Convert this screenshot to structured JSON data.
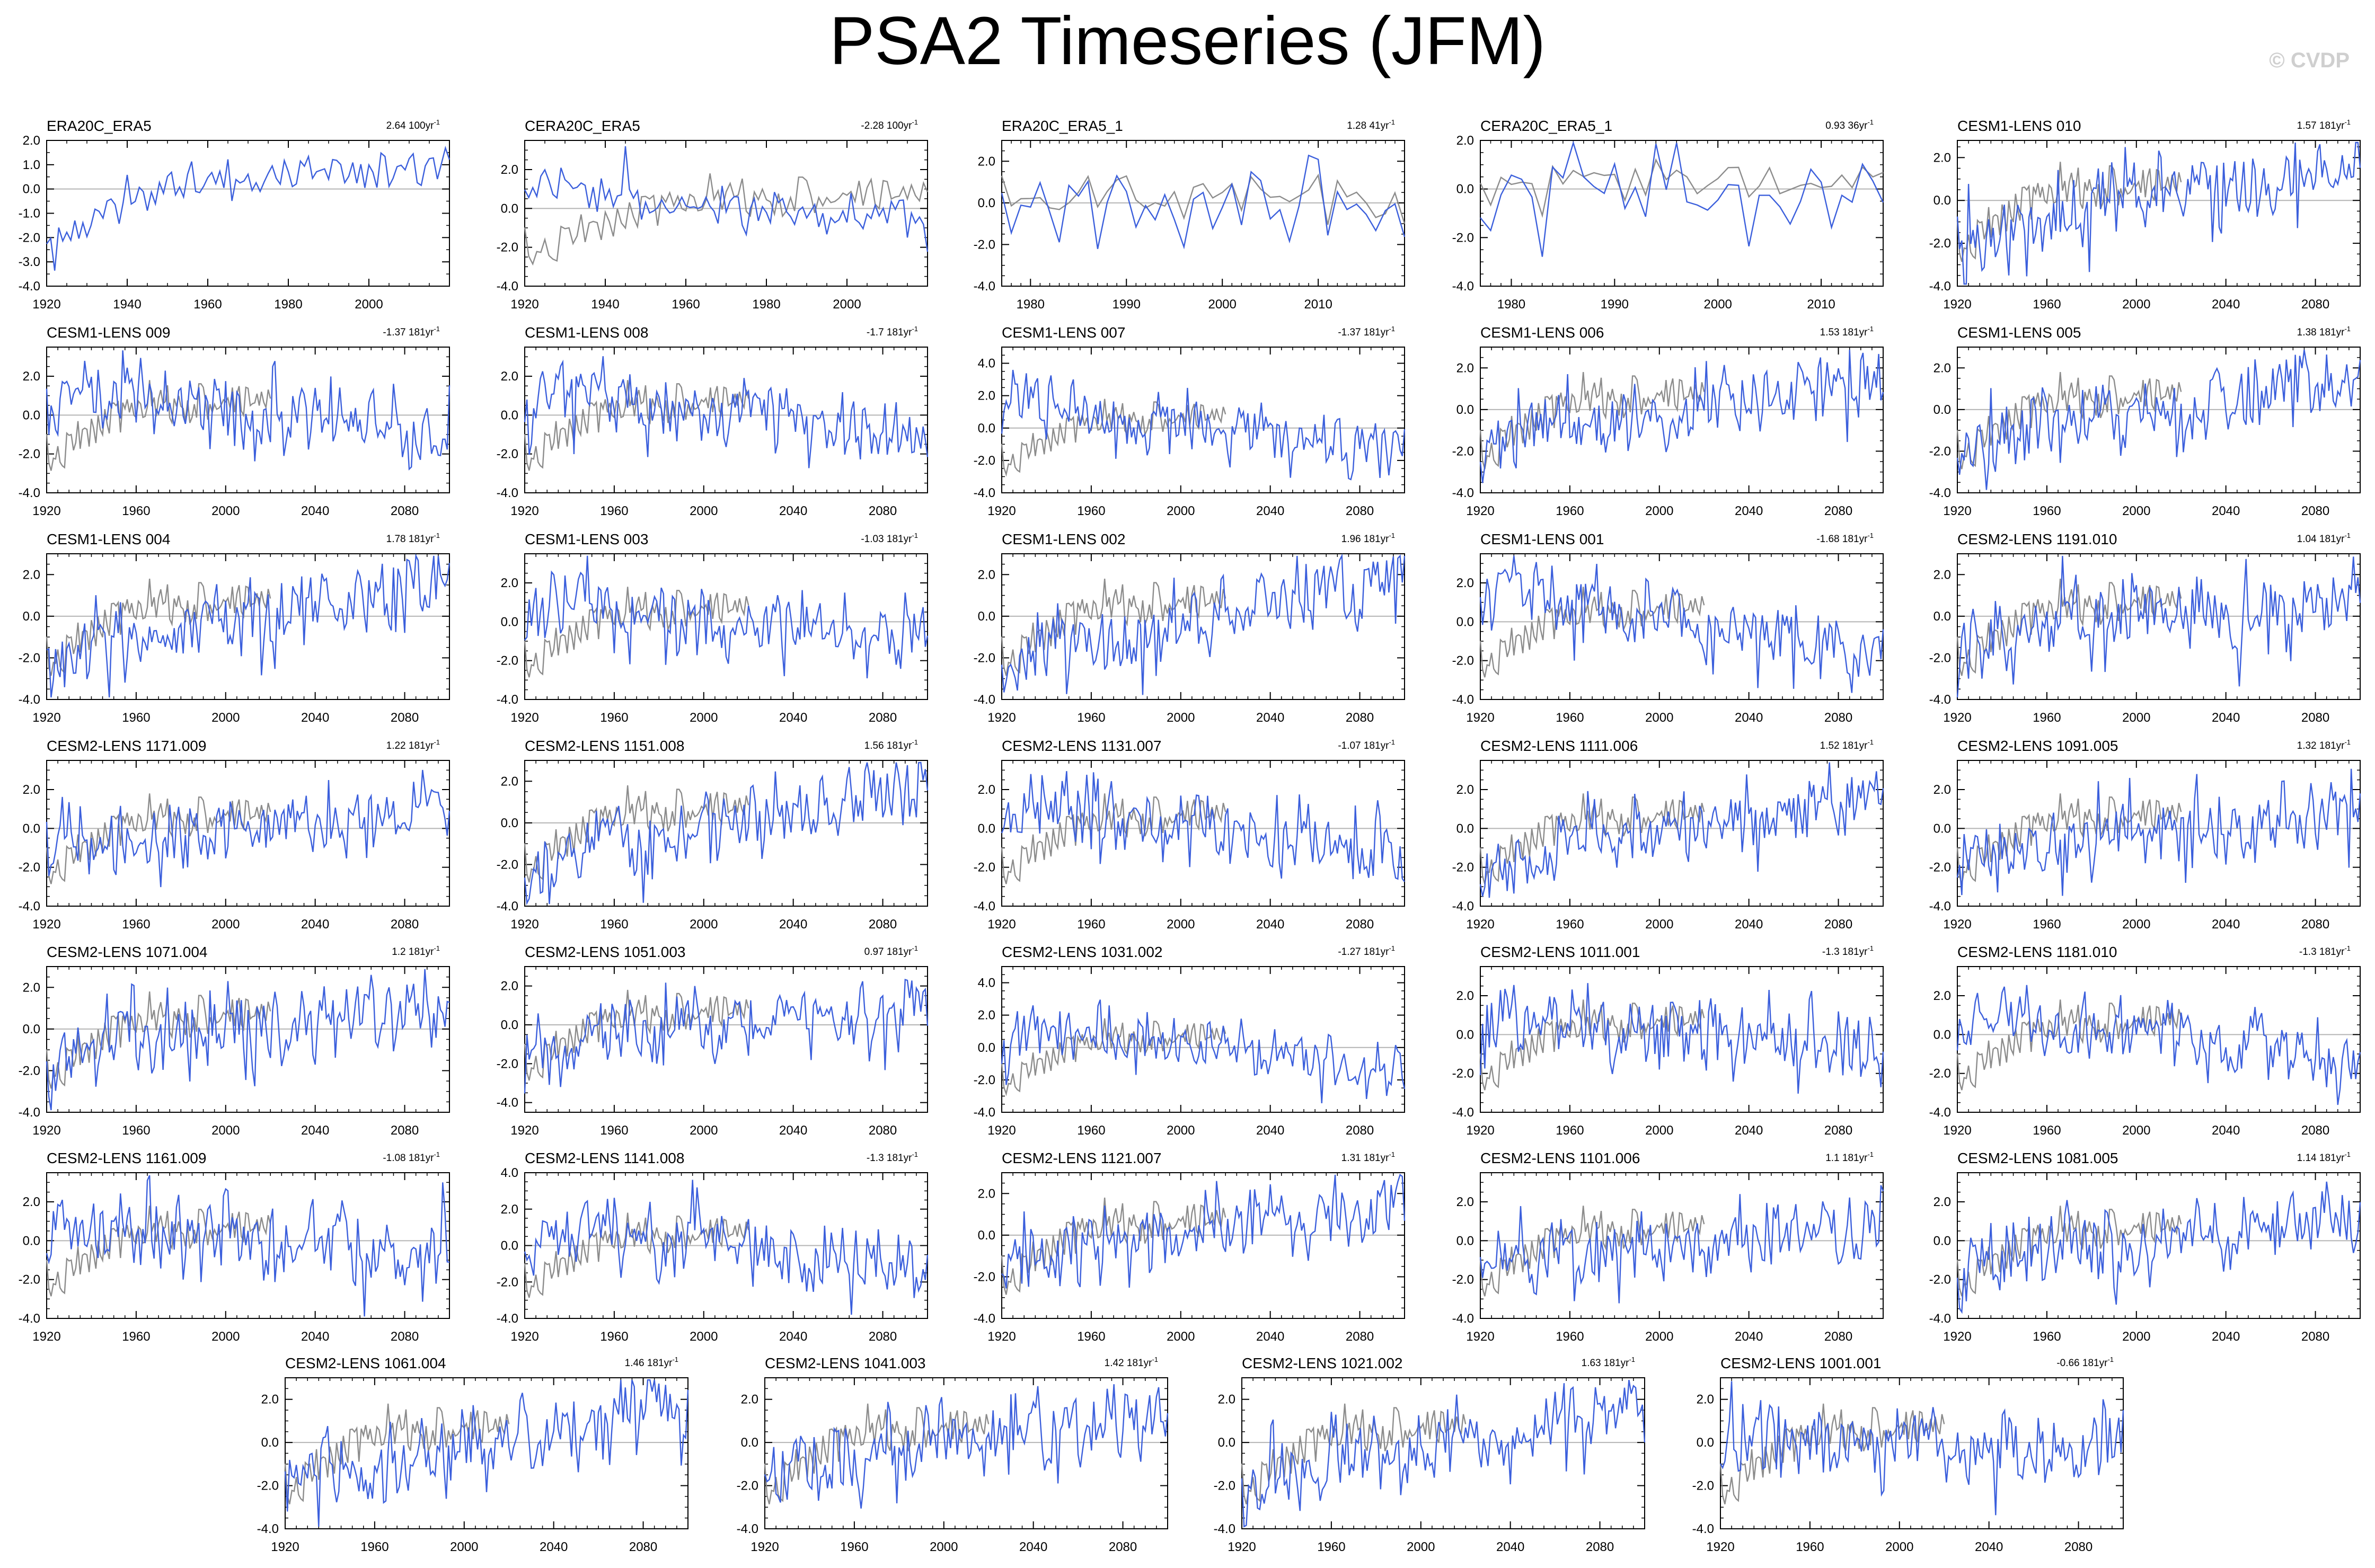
{
  "title": "PSA2 Timeseries (JFM)",
  "watermark": "© CVDP",
  "colors": {
    "model": "#3b5fdc",
    "obs": "#8c8c8c",
    "zero": "#b4b4b4",
    "axis": "#000000"
  },
  "chart_data": [
    {
      "type": "line",
      "title": "ERA20C_ERA5",
      "trend": "2.64 100yr",
      "kind": "obs20c",
      "series": [
        {
          "values": []
        }
      ],
      "xlim": [
        1920,
        2020
      ],
      "xticks": [
        1920,
        1940,
        1960,
        1980,
        2000
      ],
      "ylim": [
        -4,
        2
      ],
      "yticks": [
        -4,
        -3,
        -2,
        -1,
        0,
        1,
        2
      ],
      "ytick_labels": [
        "-4.0",
        "-3.0",
        "-2.0",
        "-1.0",
        "0.0",
        "1.0",
        "2.0"
      ]
    },
    {
      "type": "line",
      "title": "CERA20C_ERA5",
      "trend": "-2.28 100yr",
      "kind": "obs20c_cmp",
      "series": [
        {
          "values": []
        }
      ],
      "xlim": [
        1920,
        2020
      ],
      "xticks": [
        1920,
        1940,
        1960,
        1980,
        2000
      ],
      "ylim": [
        -4,
        3.5
      ],
      "yticks": [
        -4,
        -2,
        0,
        2
      ],
      "ytick_labels": [
        "-4.0",
        "-2.0",
        "0.0",
        "2.0"
      ]
    },
    {
      "type": "line",
      "title": "ERA20C_ERA5_1",
      "trend": "1.28 41yr",
      "kind": "obsERA5",
      "series": [
        {
          "values": []
        }
      ],
      "xlim": [
        1977,
        2019
      ],
      "xticks": [
        1980,
        1990,
        2000,
        2010
      ],
      "ylim": [
        -4,
        3
      ],
      "yticks": [
        -4,
        -2,
        0,
        2
      ],
      "ytick_labels": [
        "-4.0",
        "-2.0",
        "0.0",
        "2.0"
      ]
    },
    {
      "type": "line",
      "title": "CERA20C_ERA5_1",
      "trend": "0.93 36yr",
      "kind": "obsERA5",
      "series": [
        {
          "values": []
        }
      ],
      "xlim": [
        1977,
        2016
      ],
      "xticks": [
        1980,
        1990,
        2000,
        2010
      ],
      "ylim": [
        -4,
        2
      ],
      "yticks": [
        -4,
        -2,
        0,
        2
      ],
      "ytick_labels": [
        "-4.0",
        "-2.0",
        "0.0",
        "2.0"
      ]
    },
    {
      "type": "line",
      "title": "CESM1-LENS 010",
      "trend": "1.57 181yr",
      "kind": "lens",
      "series": [
        {
          "values": []
        }
      ],
      "xlim": [
        1920,
        2100
      ],
      "xticks": [
        1920,
        1960,
        2000,
        2040,
        2080
      ],
      "ylim": [
        -4,
        2.8
      ],
      "yticks": [
        -4,
        -2,
        0,
        2
      ],
      "ytick_labels": [
        "-4.0",
        "-2.0",
        "0.0",
        "2.0"
      ]
    },
    {
      "type": "line",
      "title": "CESM1-LENS 009",
      "trend": "-1.37 181yr",
      "kind": "lens",
      "series": [
        {
          "values": []
        }
      ],
      "xlim": [
        1920,
        2100
      ],
      "xticks": [
        1920,
        1960,
        2000,
        2040,
        2080
      ],
      "ylim": [
        -4,
        3.5
      ],
      "yticks": [
        -4,
        -2,
        0,
        2
      ],
      "ytick_labels": [
        "-4.0",
        "-2.0",
        "0.0",
        "2.0"
      ]
    },
    {
      "type": "line",
      "title": "CESM1-LENS 008",
      "trend": "-1.7 181yr",
      "kind": "lens",
      "series": [
        {
          "values": []
        }
      ],
      "xlim": [
        1920,
        2100
      ],
      "xticks": [
        1920,
        1960,
        2000,
        2040,
        2080
      ],
      "ylim": [
        -4,
        3.5
      ],
      "yticks": [
        -4,
        -2,
        0,
        2
      ],
      "ytick_labels": [
        "-4.0",
        "-2.0",
        "0.0",
        "2.0"
      ]
    },
    {
      "type": "line",
      "title": "CESM1-LENS 007",
      "trend": "-1.37 181yr",
      "kind": "lens",
      "series": [
        {
          "values": []
        }
      ],
      "xlim": [
        1920,
        2100
      ],
      "xticks": [
        1920,
        1960,
        2000,
        2040,
        2080
      ],
      "ylim": [
        -4,
        5
      ],
      "yticks": [
        -4,
        -2,
        0,
        2,
        4
      ],
      "ytick_labels": [
        "-4.0",
        "-2.0",
        "0.0",
        "2.0",
        "4.0"
      ]
    },
    {
      "type": "line",
      "title": "CESM1-LENS 006",
      "trend": "1.53 181yr",
      "kind": "lens",
      "series": [
        {
          "values": []
        }
      ],
      "xlim": [
        1920,
        2100
      ],
      "xticks": [
        1920,
        1960,
        2000,
        2040,
        2080
      ],
      "ylim": [
        -4,
        3
      ],
      "yticks": [
        -4,
        -2,
        0,
        2
      ],
      "ytick_labels": [
        "-4.0",
        "-2.0",
        "0.0",
        "2.0"
      ]
    },
    {
      "type": "line",
      "title": "CESM1-LENS 005",
      "trend": "1.38 181yr",
      "kind": "lens",
      "series": [
        {
          "values": []
        }
      ],
      "xlim": [
        1920,
        2100
      ],
      "xticks": [
        1920,
        1960,
        2000,
        2040,
        2080
      ],
      "ylim": [
        -4,
        3
      ],
      "yticks": [
        -4,
        -2,
        0,
        2
      ],
      "ytick_labels": [
        "-4.0",
        "-2.0",
        "0.0",
        "2.0"
      ]
    },
    {
      "type": "line",
      "title": "CESM1-LENS 004",
      "trend": "1.78 181yr",
      "kind": "lens",
      "series": [
        {
          "values": []
        }
      ],
      "xlim": [
        1920,
        2100
      ],
      "xticks": [
        1920,
        1960,
        2000,
        2040,
        2080
      ],
      "ylim": [
        -4,
        3
      ],
      "yticks": [
        -4,
        -2,
        0,
        2
      ],
      "ytick_labels": [
        "-4.0",
        "-2.0",
        "0.0",
        "2.0"
      ]
    },
    {
      "type": "line",
      "title": "CESM1-LENS 003",
      "trend": "-1.03 181yr",
      "kind": "lens",
      "series": [
        {
          "values": []
        }
      ],
      "xlim": [
        1920,
        2100
      ],
      "xticks": [
        1920,
        1960,
        2000,
        2040,
        2080
      ],
      "ylim": [
        -4,
        3.5
      ],
      "yticks": [
        -4,
        -2,
        0,
        2
      ],
      "ytick_labels": [
        "-4.0",
        "-2.0",
        "0.0",
        "2.0"
      ]
    },
    {
      "type": "line",
      "title": "CESM1-LENS 002",
      "trend": "1.96 181yr",
      "kind": "lens",
      "series": [
        {
          "values": []
        }
      ],
      "xlim": [
        1920,
        2100
      ],
      "xticks": [
        1920,
        1960,
        2000,
        2040,
        2080
      ],
      "ylim": [
        -4,
        3
      ],
      "yticks": [
        -4,
        -2,
        0,
        2
      ],
      "ytick_labels": [
        "-4.0",
        "-2.0",
        "0.0",
        "2.0"
      ]
    },
    {
      "type": "line",
      "title": "CESM1-LENS 001",
      "trend": "-1.68 181yr",
      "kind": "lens",
      "series": [
        {
          "values": []
        }
      ],
      "xlim": [
        1920,
        2100
      ],
      "xticks": [
        1920,
        1960,
        2000,
        2040,
        2080
      ],
      "ylim": [
        -4,
        3.5
      ],
      "yticks": [
        -4,
        -2,
        0,
        2
      ],
      "ytick_labels": [
        "-4.0",
        "-2.0",
        "0.0",
        "2.0"
      ]
    },
    {
      "type": "line",
      "title": "CESM2-LENS 1191.010",
      "trend": "1.04 181yr",
      "kind": "lens",
      "series": [
        {
          "values": []
        }
      ],
      "xlim": [
        1920,
        2100
      ],
      "xticks": [
        1920,
        1960,
        2000,
        2040,
        2080
      ],
      "ylim": [
        -4,
        3
      ],
      "yticks": [
        -4,
        -2,
        0,
        2
      ],
      "ytick_labels": [
        "-4.0",
        "-2.0",
        "0.0",
        "2.0"
      ]
    },
    {
      "type": "line",
      "title": "CESM2-LENS 1171.009",
      "trend": "1.22 181yr",
      "kind": "lens",
      "series": [
        {
          "values": []
        }
      ],
      "xlim": [
        1920,
        2100
      ],
      "xticks": [
        1920,
        1960,
        2000,
        2040,
        2080
      ],
      "ylim": [
        -4,
        3.5
      ],
      "yticks": [
        -4,
        -2,
        0,
        2
      ],
      "ytick_labels": [
        "-4.0",
        "-2.0",
        "0.0",
        "2.0"
      ]
    },
    {
      "type": "line",
      "title": "CESM2-LENS 1151.008",
      "trend": "1.56 181yr",
      "kind": "lens",
      "series": [
        {
          "values": []
        }
      ],
      "xlim": [
        1920,
        2100
      ],
      "xticks": [
        1920,
        1960,
        2000,
        2040,
        2080
      ],
      "ylim": [
        -4,
        3
      ],
      "yticks": [
        -4,
        -2,
        0,
        2
      ],
      "ytick_labels": [
        "-4.0",
        "-2.0",
        "0.0",
        "2.0"
      ]
    },
    {
      "type": "line",
      "title": "CESM2-LENS 1131.007",
      "trend": "-1.07 181yr",
      "kind": "lens",
      "series": [
        {
          "values": []
        }
      ],
      "xlim": [
        1920,
        2100
      ],
      "xticks": [
        1920,
        1960,
        2000,
        2040,
        2080
      ],
      "ylim": [
        -4,
        3.5
      ],
      "yticks": [
        -4,
        -2,
        0,
        2
      ],
      "ytick_labels": [
        "-4.0",
        "-2.0",
        "0.0",
        "2.0"
      ]
    },
    {
      "type": "line",
      "title": "CESM2-LENS 1111.006",
      "trend": "1.52 181yr",
      "kind": "lens",
      "series": [
        {
          "values": []
        }
      ],
      "xlim": [
        1920,
        2100
      ],
      "xticks": [
        1920,
        1960,
        2000,
        2040,
        2080
      ],
      "ylim": [
        -4,
        3.5
      ],
      "yticks": [
        -4,
        -2,
        0,
        2
      ],
      "ytick_labels": [
        "-4.0",
        "-2.0",
        "0.0",
        "2.0"
      ]
    },
    {
      "type": "line",
      "title": "CESM2-LENS 1091.005",
      "trend": "1.32 181yr",
      "kind": "lens",
      "series": [
        {
          "values": []
        }
      ],
      "xlim": [
        1920,
        2100
      ],
      "xticks": [
        1920,
        1960,
        2000,
        2040,
        2080
      ],
      "ylim": [
        -4,
        3.5
      ],
      "yticks": [
        -4,
        -2,
        0,
        2
      ],
      "ytick_labels": [
        "-4.0",
        "-2.0",
        "0.0",
        "2.0"
      ]
    },
    {
      "type": "line",
      "title": "CESM2-LENS 1071.004",
      "trend": "1.2 181yr",
      "kind": "lens",
      "series": [
        {
          "values": []
        }
      ],
      "xlim": [
        1920,
        2100
      ],
      "xticks": [
        1920,
        1960,
        2000,
        2040,
        2080
      ],
      "ylim": [
        -4,
        3
      ],
      "yticks": [
        -4,
        -2,
        0,
        2
      ],
      "ytick_labels": [
        "-4.0",
        "-2.0",
        "0.0",
        "2.0"
      ]
    },
    {
      "type": "line",
      "title": "CESM2-LENS 1051.003",
      "trend": "0.97 181yr",
      "kind": "lens",
      "series": [
        {
          "values": []
        }
      ],
      "xlim": [
        1920,
        2100
      ],
      "xticks": [
        1920,
        1960,
        2000,
        2040,
        2080
      ],
      "ylim": [
        -4.5,
        3
      ],
      "yticks": [
        -4,
        -2,
        0,
        2
      ],
      "ytick_labels": [
        "-4.0",
        "-2.0",
        "0.0",
        "2.0"
      ]
    },
    {
      "type": "line",
      "title": "CESM2-LENS 1031.002",
      "trend": "-1.27 181yr",
      "kind": "lens",
      "series": [
        {
          "values": []
        }
      ],
      "xlim": [
        1920,
        2100
      ],
      "xticks": [
        1920,
        1960,
        2000,
        2040,
        2080
      ],
      "ylim": [
        -4,
        5
      ],
      "yticks": [
        -4,
        -2,
        0,
        2,
        4
      ],
      "ytick_labels": [
        "-4.0",
        "-2.0",
        "0.0",
        "2.0",
        "4.0"
      ]
    },
    {
      "type": "line",
      "title": "CESM2-LENS 1011.001",
      "trend": "-1.3 181yr",
      "kind": "lens",
      "series": [
        {
          "values": []
        }
      ],
      "xlim": [
        1920,
        2100
      ],
      "xticks": [
        1920,
        1960,
        2000,
        2040,
        2080
      ],
      "ylim": [
        -4,
        3.5
      ],
      "yticks": [
        -4,
        -2,
        0,
        2
      ],
      "ytick_labels": [
        "-4.0",
        "-2.0",
        "0.0",
        "2.0"
      ]
    },
    {
      "type": "line",
      "title": "CESM2-LENS 1181.010",
      "trend": "-1.3 181yr",
      "kind": "lens",
      "series": [
        {
          "values": []
        }
      ],
      "xlim": [
        1920,
        2100
      ],
      "xticks": [
        1920,
        1960,
        2000,
        2040,
        2080
      ],
      "ylim": [
        -4,
        3.5
      ],
      "yticks": [
        -4,
        -2,
        0,
        2
      ],
      "ytick_labels": [
        "-4.0",
        "-2.0",
        "0.0",
        "2.0"
      ]
    },
    {
      "type": "line",
      "title": "CESM2-LENS 1161.009",
      "trend": "-1.08 181yr",
      "kind": "lens",
      "series": [
        {
          "values": []
        }
      ],
      "xlim": [
        1920,
        2100
      ],
      "xticks": [
        1920,
        1960,
        2000,
        2040,
        2080
      ],
      "ylim": [
        -4,
        3.5
      ],
      "yticks": [
        -4,
        -2,
        0,
        2
      ],
      "ytick_labels": [
        "-4.0",
        "-2.0",
        "0.0",
        "2.0"
      ]
    },
    {
      "type": "line",
      "title": "CESM2-LENS 1141.008",
      "trend": "-1.3 181yr",
      "kind": "lens",
      "series": [
        {
          "values": []
        }
      ],
      "xlim": [
        1920,
        2100
      ],
      "xticks": [
        1920,
        1960,
        2000,
        2040,
        2080
      ],
      "ylim": [
        -4,
        4
      ],
      "yticks": [
        -4,
        -2,
        0,
        2,
        4
      ],
      "ytick_labels": [
        "-4.0",
        "-2.0",
        "0.0",
        "2.0",
        "4.0"
      ]
    },
    {
      "type": "line",
      "title": "CESM2-LENS 1121.007",
      "trend": "1.31 181yr",
      "kind": "lens",
      "series": [
        {
          "values": []
        }
      ],
      "xlim": [
        1920,
        2100
      ],
      "xticks": [
        1920,
        1960,
        2000,
        2040,
        2080
      ],
      "ylim": [
        -4,
        3
      ],
      "yticks": [
        -4,
        -2,
        0,
        2
      ],
      "ytick_labels": [
        "-4.0",
        "-2.0",
        "0.0",
        "2.0"
      ]
    },
    {
      "type": "line",
      "title": "CESM2-LENS 1101.006",
      "trend": "1.1 181yr",
      "kind": "lens",
      "series": [
        {
          "values": []
        }
      ],
      "xlim": [
        1920,
        2100
      ],
      "xticks": [
        1920,
        1960,
        2000,
        2040,
        2080
      ],
      "ylim": [
        -4,
        3.5
      ],
      "yticks": [
        -4,
        -2,
        0,
        2
      ],
      "ytick_labels": [
        "-4.0",
        "-2.0",
        "0.0",
        "2.0"
      ]
    },
    {
      "type": "line",
      "title": "CESM2-LENS 1081.005",
      "trend": "1.14 181yr",
      "kind": "lens",
      "series": [
        {
          "values": []
        }
      ],
      "xlim": [
        1920,
        2100
      ],
      "xticks": [
        1920,
        1960,
        2000,
        2040,
        2080
      ],
      "ylim": [
        -4,
        3.5
      ],
      "yticks": [
        -4,
        -2,
        0,
        2
      ],
      "ytick_labels": [
        "-4.0",
        "-2.0",
        "0.0",
        "2.0"
      ]
    },
    {
      "type": "line",
      "title": "CESM2-LENS 1061.004",
      "trend": "1.46 181yr",
      "kind": "lens",
      "series": [
        {
          "values": []
        }
      ],
      "xlim": [
        1920,
        2100
      ],
      "xticks": [
        1920,
        1960,
        2000,
        2040,
        2080
      ],
      "ylim": [
        -4,
        3
      ],
      "yticks": [
        -4,
        -2,
        0,
        2
      ],
      "ytick_labels": [
        "-4.0",
        "-2.0",
        "0.0",
        "2.0"
      ]
    },
    {
      "type": "line",
      "title": "CESM2-LENS 1041.003",
      "trend": "1.42 181yr",
      "kind": "lens",
      "series": [
        {
          "values": []
        }
      ],
      "xlim": [
        1920,
        2100
      ],
      "xticks": [
        1920,
        1960,
        2000,
        2040,
        2080
      ],
      "ylim": [
        -4,
        3
      ],
      "yticks": [
        -4,
        -2,
        0,
        2
      ],
      "ytick_labels": [
        "-4.0",
        "-2.0",
        "0.0",
        "2.0"
      ]
    },
    {
      "type": "line",
      "title": "CESM2-LENS 1021.002",
      "trend": "1.63 181yr",
      "kind": "lens",
      "series": [
        {
          "values": []
        }
      ],
      "xlim": [
        1920,
        2100
      ],
      "xticks": [
        1920,
        1960,
        2000,
        2040,
        2080
      ],
      "ylim": [
        -4,
        3
      ],
      "yticks": [
        -4,
        -2,
        0,
        2
      ],
      "ytick_labels": [
        "-4.0",
        "-2.0",
        "0.0",
        "2.0"
      ]
    },
    {
      "type": "line",
      "title": "CESM2-LENS 1001.001",
      "trend": "-0.66 181yr",
      "kind": "lens",
      "series": [
        {
          "values": []
        }
      ],
      "xlim": [
        1920,
        2100
      ],
      "xticks": [
        1920,
        1960,
        2000,
        2040,
        2080
      ],
      "ylim": [
        -4,
        3
      ],
      "yticks": [
        -4,
        -2,
        0,
        2
      ],
      "ytick_labels": [
        "-4.0",
        "-2.0",
        "0.0",
        "2.0"
      ]
    }
  ]
}
